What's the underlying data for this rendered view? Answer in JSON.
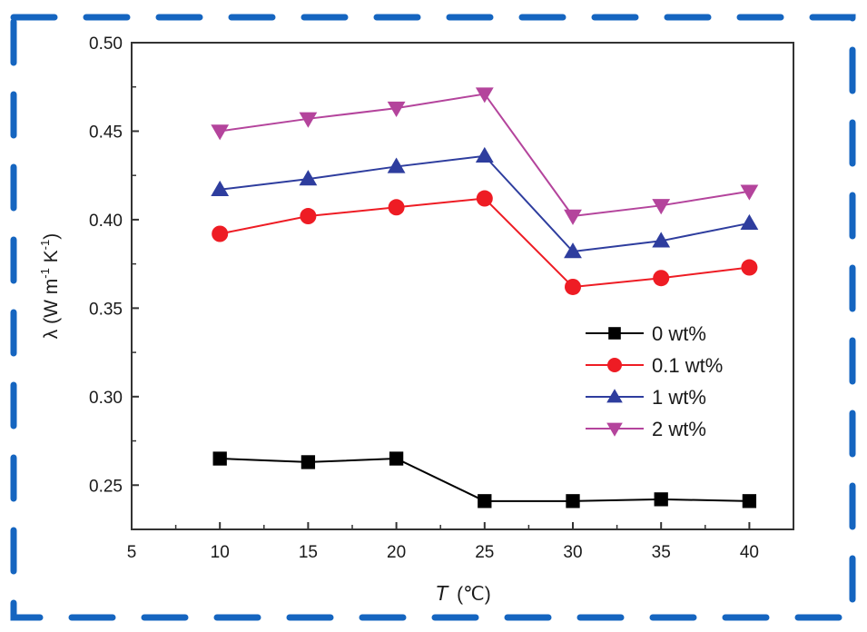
{
  "frame": {
    "color": "#1565c0"
  },
  "chart_data": {
    "type": "line",
    "title": "",
    "xlabel": "T",
    "xlabel_unit": "(℃)",
    "ylabel": "λ (W m",
    "ylabel_full": "λ (W m-1 K-1)",
    "ylabel_parts": {
      "lambda": "λ (W m",
      "sup1": "-1",
      "mid": " K",
      "sup2": "-1",
      "end": ")"
    },
    "xlim": [
      5,
      42.5
    ],
    "ylim": [
      0.225,
      0.5
    ],
    "x_ticks": [
      5,
      10,
      15,
      20,
      25,
      30,
      35,
      40
    ],
    "x_tick_labels": [
      "5",
      "10",
      "15",
      "20",
      "25",
      "30",
      "35",
      "40"
    ],
    "y_ticks": [
      0.25,
      0.3,
      0.35,
      0.4,
      0.45,
      0.5
    ],
    "y_tick_labels": [
      "0.25",
      "0.30",
      "0.35",
      "0.40",
      "0.45",
      "0.50"
    ],
    "grid": false,
    "legend_position": "center-right",
    "x": [
      10,
      15,
      20,
      25,
      30,
      35,
      40
    ],
    "series": [
      {
        "name": "0 wt%",
        "color": "#000000",
        "marker": "square",
        "values": [
          0.265,
          0.263,
          0.265,
          0.241,
          0.241,
          0.242,
          0.241
        ]
      },
      {
        "name": "0.1 wt%",
        "color": "#ee1c24",
        "marker": "circle",
        "values": [
          0.392,
          0.402,
          0.407,
          0.412,
          0.362,
          0.367,
          0.373
        ]
      },
      {
        "name": "1 wt%",
        "color": "#2e3d9e",
        "marker": "triangle-up",
        "values": [
          0.417,
          0.423,
          0.43,
          0.436,
          0.382,
          0.388,
          0.398
        ]
      },
      {
        "name": "2 wt%",
        "color": "#b4449c",
        "marker": "triangle-down",
        "values": [
          0.45,
          0.457,
          0.463,
          0.471,
          0.402,
          0.408,
          0.416
        ]
      }
    ]
  }
}
